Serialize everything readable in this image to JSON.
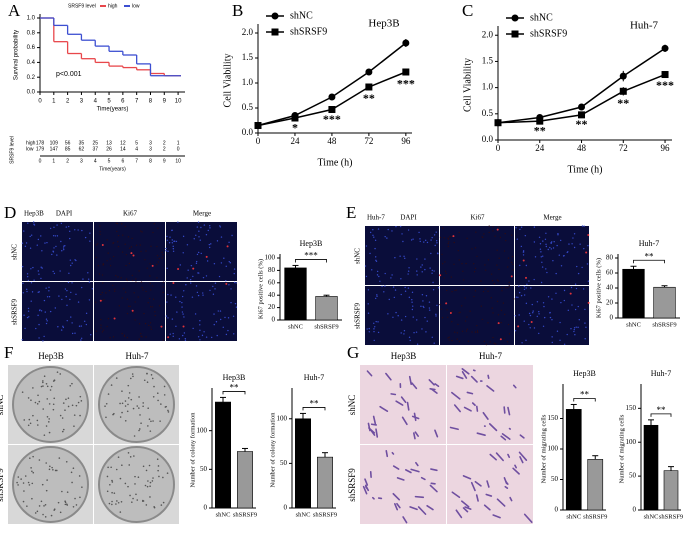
{
  "chart_data": [
    {
      "type": "km",
      "panel": "A",
      "xlabel": "Time(years)",
      "ylabel": "Survival probability",
      "legend_title": "SRSF9 level",
      "annotation": "p<0.001",
      "x": [
        0,
        1,
        2,
        3,
        4,
        5,
        6,
        7,
        8,
        9,
        10
      ],
      "xlim": [
        0,
        10.5
      ],
      "xticks": [
        0,
        1,
        2,
        3,
        4,
        5,
        6,
        7,
        8,
        9,
        10
      ],
      "ylim": [
        0,
        1
      ],
      "yticks": [
        {
          "value": 0,
          "label": "0.0"
        },
        0.2,
        0.4,
        0.6,
        0.8,
        {
          "value": 1,
          "label": "1.0"
        }
      ],
      "series": [
        {
          "name": "high",
          "color": "#e8474b",
          "values": [
            1,
            0.68,
            0.52,
            0.45,
            0.4,
            0.35,
            0.33,
            0.3,
            0.25,
            0.22,
            0.22
          ]
        },
        {
          "name": "low",
          "color": "#3d4fd1",
          "values": [
            1,
            0.9,
            0.78,
            0.7,
            0.62,
            0.55,
            0.5,
            0.38,
            0.22,
            0.22,
            null
          ]
        }
      ],
      "risk_table": {
        "title": "SRSF9 level",
        "rows": [
          {
            "name": "high",
            "values": [
              178,
              109,
              56,
              35,
              25,
              13,
              12,
              5,
              3,
              2,
              1
            ]
          },
          {
            "name": "low",
            "values": [
              179,
              147,
              85,
              62,
              37,
              26,
              14,
              4,
              3,
              2,
              0
            ]
          }
        ]
      }
    },
    {
      "type": "line",
      "panel": "B",
      "title": "Hep3B",
      "xlabel": "Time (h)",
      "ylabel": "Cell Viability",
      "xlim": [
        0,
        100
      ],
      "xticks": [
        0,
        24,
        48,
        72,
        96
      ],
      "x": [
        0,
        24,
        48,
        72,
        96
      ],
      "ylim": [
        0,
        2.1
      ],
      "yticks": [
        {
          "value": 0,
          "label": "0.0"
        },
        0.5,
        {
          "value": 1,
          "label": "1.0"
        },
        1.5,
        {
          "value": 2,
          "label": "2.0"
        }
      ],
      "series": [
        {
          "name": "shNC",
          "color": "#000000",
          "marker": "circle",
          "values": [
            0.15,
            0.35,
            0.72,
            1.22,
            1.8
          ],
          "errors": [
            0.02,
            0.03,
            0.03,
            0.06,
            0.08
          ]
        },
        {
          "name": "shSRSF9",
          "color": "#000000",
          "marker": "square",
          "values": [
            0.15,
            0.3,
            0.47,
            0.92,
            1.22
          ],
          "errors": [
            0.02,
            0.03,
            0.03,
            0.06,
            0.07
          ]
        }
      ],
      "annotations": [
        null,
        "*",
        "***",
        "**",
        "***"
      ]
    },
    {
      "type": "line",
      "panel": "C",
      "title": "Huh-7",
      "xlabel": "Time (h)",
      "ylabel": "Cell Viability",
      "xlim": [
        0,
        100
      ],
      "xticks": [
        0,
        24,
        48,
        72,
        96
      ],
      "x": [
        0,
        24,
        48,
        72,
        96
      ],
      "ylim": [
        0,
        2.1
      ],
      "yticks": [
        {
          "value": 0,
          "label": "0.0"
        },
        0.5,
        {
          "value": 1,
          "label": "1.0"
        },
        1.5,
        {
          "value": 2,
          "label": "2.0"
        }
      ],
      "series": [
        {
          "name": "shNC",
          "color": "#000000",
          "marker": "circle",
          "values": [
            0.33,
            0.43,
            0.63,
            1.22,
            1.75
          ],
          "errors": [
            0.03,
            0.03,
            0.03,
            0.1,
            0.07
          ]
        },
        {
          "name": "shSRSF9",
          "color": "#000000",
          "marker": "square",
          "values": [
            0.33,
            0.36,
            0.48,
            0.93,
            1.25
          ],
          "errors": [
            0.03,
            0.03,
            0.03,
            0.08,
            0.05
          ]
        }
      ],
      "annotations": [
        null,
        "**",
        "**",
        "**",
        "***"
      ]
    },
    {
      "type": "bar",
      "title": "Hep3B",
      "ylabel": "Ki67 positive cells (%)",
      "categories": [
        "shNC",
        "shSRSF9"
      ],
      "values": [
        84,
        38
      ],
      "errors": [
        4,
        2
      ],
      "colors": [
        "#000000",
        "#999999"
      ],
      "ylim": [
        0,
        100
      ],
      "yticks": [
        0,
        20,
        40,
        60,
        80,
        100
      ],
      "significance": "***"
    },
    {
      "type": "bar",
      "title": "Huh-7",
      "ylabel": "Ki67 positive cells (%)",
      "categories": [
        "shNC",
        "shSRSF9"
      ],
      "values": [
        65,
        41
      ],
      "errors": [
        4,
        2
      ],
      "colors": [
        "#000000",
        "#999999"
      ],
      "ylim": [
        0,
        80
      ],
      "yticks": [
        0,
        20,
        40,
        60,
        80
      ],
      "significance": "**"
    },
    {
      "type": "bar",
      "title": "Hep3B",
      "ylabel": "Number of colony formation",
      "categories": [
        "shNC",
        "shSRSF9"
      ],
      "values": [
        137,
        73
      ],
      "errors": [
        6,
        4
      ],
      "colors": [
        "#000000",
        "#999999"
      ],
      "ylim": [
        0,
        150
      ],
      "yticks": [
        0,
        50,
        100
      ],
      "significance": "**"
    },
    {
      "type": "bar",
      "title": "Huh-7",
      "ylabel": "Number of colony formation",
      "categories": [
        "shNC",
        "shSRSF9"
      ],
      "values": [
        100,
        57
      ],
      "errors": [
        6,
        5
      ],
      "colors": [
        "#000000",
        "#999999"
      ],
      "ylim": [
        0,
        130
      ],
      "yticks": [
        0,
        50,
        100
      ],
      "significance": "**"
    },
    {
      "type": "bar",
      "title": "Hep3B",
      "ylabel": "Number of migrating cells",
      "categories": [
        "shNC",
        "shSRSF9"
      ],
      "values": [
        165,
        83
      ],
      "errors": [
        8,
        6
      ],
      "colors": [
        "#000000",
        "#999999"
      ],
      "ylim": [
        0,
        200
      ],
      "yticks": [
        0,
        50,
        100,
        150
      ],
      "significance": "**"
    },
    {
      "type": "bar",
      "title": "Huh-7",
      "ylabel": "Number of migrating cells",
      "categories": [
        "shNC",
        "shSRSF9"
      ],
      "values": [
        125,
        58
      ],
      "errors": [
        8,
        6
      ],
      "colors": [
        "#000000",
        "#999999"
      ],
      "ylim": [
        0,
        180
      ],
      "yticks": [
        0,
        50,
        100,
        150
      ],
      "significance": "**"
    }
  ],
  "figure_panels": [
    {
      "letter": "D",
      "cell_line": "Hep3B",
      "columns": [
        "DAPI",
        "Ki67",
        "Merge"
      ],
      "rows": [
        "shNC",
        "shSRSF9"
      ]
    },
    {
      "letter": "E",
      "cell_line": "Huh-7",
      "columns": [
        "DAPI",
        "Ki67",
        "Merge"
      ],
      "rows": [
        "shNC",
        "shSRSF9"
      ]
    },
    {
      "letter": "F",
      "columns": [
        "Hep3B",
        "Huh-7"
      ],
      "rows": [
        "shNC",
        "shSRSF9"
      ]
    },
    {
      "letter": "G",
      "columns": [
        "Hep3B",
        "Huh-7"
      ],
      "rows": [
        "shNC",
        "shSRSF9"
      ]
    }
  ]
}
